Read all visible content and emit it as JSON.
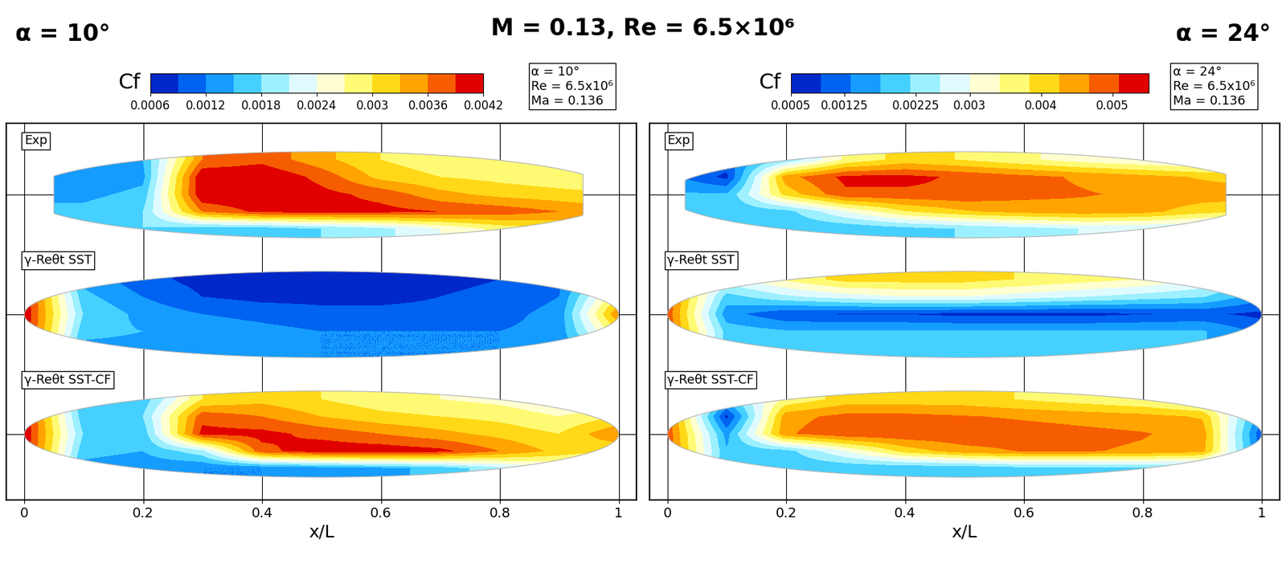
{
  "title": "M = 0.13, Re = 6.5×10⁶",
  "chart_data": [
    {
      "type": "heatmap",
      "title": "α = 10°",
      "colorbar": {
        "label": "Cf",
        "range": [
          0.0006,
          0.0042
        ],
        "ticks": [
          0.0006,
          0.0012,
          0.0018,
          0.0024,
          0.003,
          0.0036,
          0.0042
        ]
      },
      "info": [
        "α = 10°",
        "Re = 6.5x10⁶",
        "Ma = 0.136"
      ],
      "x_label": "x/L",
      "xlim": [
        -0.03,
        1.03
      ],
      "xticks": [
        0,
        0.2,
        0.4,
        0.6,
        0.8,
        1
      ],
      "grid": true,
      "tick_labels": "x",
      "x": [
        0,
        0.1,
        0.2,
        0.3,
        0.4,
        0.5,
        0.6,
        0.7,
        0.8,
        0.9,
        1
      ],
      "bodies": [
        {
          "name": "Exp",
          "x_range": [
            0.05,
            0.94
          ],
          "cf": [
            [
              0.0015,
              0.0015,
              0.0015,
              0.0036,
              0.0038,
              0.0034,
              0.003,
              0.0028,
              0.0027,
              0.0026,
              0.0026
            ],
            [
              0.0012,
              0.0012,
              0.0014,
              0.0042,
              0.0042,
              0.0038,
              0.0032,
              0.003,
              0.0029,
              0.0028,
              0.0028
            ],
            [
              0.0014,
              0.0014,
              0.0016,
              0.0042,
              0.0042,
              0.004,
              0.0038,
              0.0034,
              0.0032,
              0.0031,
              0.003
            ],
            [
              0.0016,
              0.0016,
              0.0018,
              0.0036,
              0.004,
              0.004,
              0.004,
              0.0039,
              0.0038,
              0.0036,
              0.0034
            ],
            [
              0.0018,
              0.0018,
              0.0018,
              0.0016,
              0.0016,
              0.0018,
              0.002,
              0.0024,
              0.0028,
              0.003,
              0.003
            ]
          ]
        },
        {
          "name": "γ-Reθt SST",
          "x_range": [
            0,
            1
          ],
          "cf": [
            [
              0.004,
              0.0014,
              0.001,
              0.0008,
              0.0007,
              0.0007,
              0.0007,
              0.0008,
              0.0009,
              0.0011,
              0.002
            ],
            [
              0.0042,
              0.0016,
              0.0012,
              0.0009,
              0.0008,
              0.0008,
              0.0008,
              0.0009,
              0.001,
              0.0012,
              0.003
            ],
            [
              0.0042,
              0.0018,
              0.0014,
              0.0012,
              0.0011,
              0.001,
              0.001,
              0.001,
              0.0011,
              0.0013,
              0.0036
            ],
            [
              0.0042,
              0.0016,
              0.0015,
              0.0014,
              0.0013,
              0.0012,
              0.0012,
              0.0012,
              0.0012,
              0.0013,
              0.003
            ],
            [
              0.004,
              0.0014,
              0.0014,
              0.0013,
              0.0013,
              0.0012,
              0.0012,
              0.0012,
              0.0012,
              0.0013,
              0.002
            ]
          ]
        },
        {
          "name": "γ-Reθt SST-CF",
          "x_range": [
            0,
            1
          ],
          "cf": [
            [
              0.004,
              0.0015,
              0.0016,
              0.003,
              0.0032,
              0.003,
              0.0028,
              0.0027,
              0.0026,
              0.0024,
              0.002
            ],
            [
              0.0042,
              0.0016,
              0.0018,
              0.0038,
              0.0036,
              0.0033,
              0.0031,
              0.003,
              0.0029,
              0.0027,
              0.003
            ],
            [
              0.0042,
              0.0018,
              0.0016,
              0.004,
              0.004,
              0.0038,
              0.0036,
              0.0034,
              0.0032,
              0.003,
              0.0036
            ],
            [
              0.0042,
              0.0016,
              0.0015,
              0.002,
              0.0038,
              0.0041,
              0.0041,
              0.004,
              0.0036,
              0.0032,
              0.003
            ],
            [
              0.004,
              0.0014,
              0.0013,
              0.0012,
              0.0012,
              0.0013,
              0.0014,
              0.0016,
              0.002,
              0.0024,
              0.002
            ]
          ]
        }
      ]
    },
    {
      "type": "heatmap",
      "title": "α = 24°",
      "colorbar": {
        "label": "Cf",
        "range": [
          0.0005,
          0.0055
        ],
        "ticks": [
          0.0005,
          0.00125,
          0.00225,
          0.003,
          0.004,
          0.005
        ]
      },
      "info": [
        "α = 24°",
        "Re = 6.5x10⁶",
        "Ma = 0.136"
      ],
      "x_label": "x/L",
      "xlim": [
        -0.03,
        1.03
      ],
      "xticks": [
        0,
        0.2,
        0.4,
        0.6,
        0.8,
        1
      ],
      "grid": true,
      "tick_labels": "x",
      "x": [
        0,
        0.1,
        0.2,
        0.3,
        0.4,
        0.5,
        0.6,
        0.7,
        0.8,
        0.9,
        1
      ],
      "bodies": [
        {
          "name": "Exp",
          "x_range": [
            0.03,
            0.94
          ],
          "cf": [
            [
              0.0015,
              0.0012,
              0.0022,
              0.0035,
              0.004,
              0.0038,
              0.0035,
              0.0032,
              0.003,
              0.0028,
              0.0028
            ],
            [
              0.0015,
              0.0008,
              0.0045,
              0.0052,
              0.0052,
              0.005,
              0.0048,
              0.0046,
              0.0044,
              0.0042,
              0.004
            ],
            [
              0.0018,
              0.0018,
              0.004,
              0.005,
              0.005,
              0.005,
              0.0048,
              0.0047,
              0.0046,
              0.0045,
              0.0045
            ],
            [
              0.0018,
              0.0018,
              0.002,
              0.003,
              0.0038,
              0.0042,
              0.0044,
              0.0045,
              0.0044,
              0.004,
              0.0038
            ],
            [
              0.0018,
              0.0018,
              0.0018,
              0.0018,
              0.002,
              0.0022,
              0.0024,
              0.0026,
              0.0026,
              0.0024,
              0.0024
            ]
          ]
        },
        {
          "name": "γ-Reθt SST",
          "x_range": [
            0,
            1
          ],
          "cf": [
            [
              0.005,
              0.0028,
              0.0035,
              0.004,
              0.004,
              0.004,
              0.0038,
              0.0036,
              0.0034,
              0.003,
              0.002
            ],
            [
              0.005,
              0.002,
              0.0025,
              0.0028,
              0.003,
              0.003,
              0.0028,
              0.0026,
              0.0024,
              0.0022,
              0.0015
            ],
            [
              0.005,
              0.0015,
              0.001,
              0.0009,
              0.0009,
              0.0008,
              0.0008,
              0.0008,
              0.0009,
              0.001,
              0.0008
            ],
            [
              0.005,
              0.002,
              0.0018,
              0.0018,
              0.0018,
              0.0018,
              0.0018,
              0.0018,
              0.0018,
              0.0018,
              0.0012
            ],
            [
              0.0045,
              0.002,
              0.0018,
              0.0018,
              0.0018,
              0.0018,
              0.0018,
              0.0018,
              0.0018,
              0.0018,
              0.0012
            ]
          ]
        },
        {
          "name": "γ-Reθt SST-CF",
          "x_range": [
            0,
            1
          ],
          "cf": [
            [
              0.005,
              0.002,
              0.0035,
              0.004,
              0.004,
              0.004,
              0.0038,
              0.0036,
              0.0034,
              0.003,
              0.002
            ],
            [
              0.005,
              0.0008,
              0.0045,
              0.0048,
              0.0048,
              0.0047,
              0.0046,
              0.0045,
              0.0044,
              0.0042,
              0.0015
            ],
            [
              0.005,
              0.0016,
              0.0046,
              0.005,
              0.005,
              0.005,
              0.0049,
              0.0048,
              0.0047,
              0.0045,
              0.001
            ],
            [
              0.005,
              0.0018,
              0.002,
              0.003,
              0.004,
              0.0045,
              0.0047,
              0.0047,
              0.0046,
              0.0044,
              0.0012
            ],
            [
              0.0045,
              0.0018,
              0.0018,
              0.0018,
              0.0018,
              0.0018,
              0.002,
              0.002,
              0.002,
              0.002,
              0.0012
            ]
          ]
        }
      ]
    }
  ]
}
